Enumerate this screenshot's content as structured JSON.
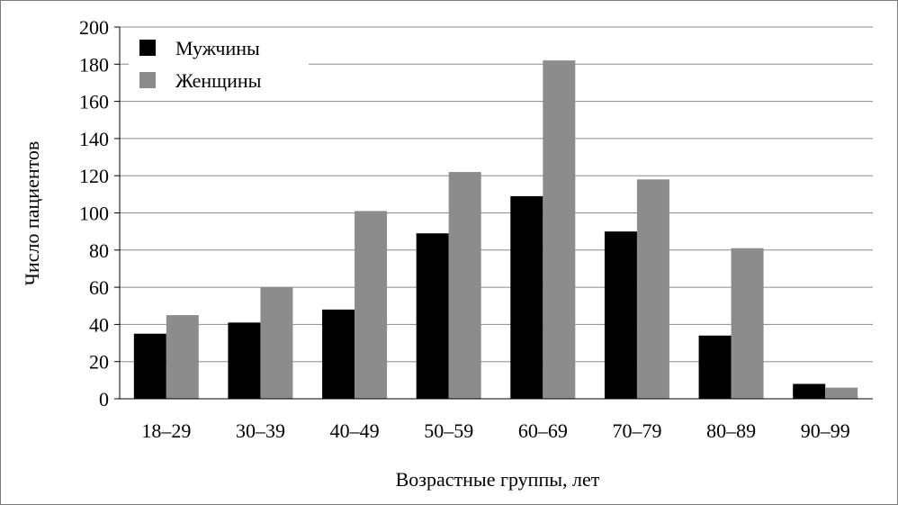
{
  "chart_data": {
    "type": "bar",
    "categories": [
      "18–29",
      "30–39",
      "40–49",
      "50–59",
      "60–69",
      "70–79",
      "80–89",
      "90–99"
    ],
    "series": [
      {
        "name": "Мужчины",
        "color": "#000000",
        "values": [
          35,
          41,
          48,
          89,
          109,
          90,
          34,
          8
        ]
      },
      {
        "name": "Женщины",
        "color": "#8c8c8c",
        "values": [
          45,
          60,
          101,
          122,
          182,
          118,
          81,
          6
        ]
      }
    ],
    "xlabel": "Возрастные группы, лет",
    "ylabel": "Число пациентов",
    "ylim": [
      0,
      200
    ],
    "yticks": [
      "0",
      "20",
      "40",
      "60",
      "80",
      "100",
      "120",
      "140",
      "160",
      "180",
      "200"
    ],
    "grid": true,
    "legend_position": "top-left"
  }
}
